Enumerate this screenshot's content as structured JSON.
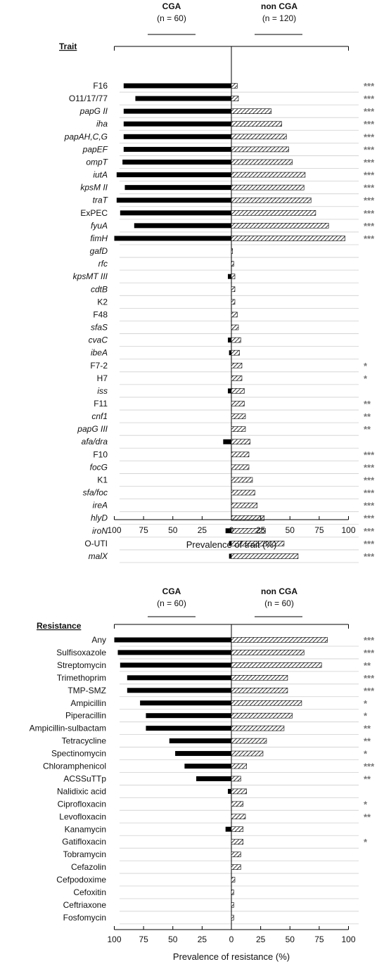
{
  "chart_data": [
    {
      "type": "bar",
      "orientation": "horizontal-diverging",
      "left_group": {
        "label": "CGA",
        "n_label": "(n = 60)"
      },
      "right_group": {
        "label": "non CGA",
        "n_label": "(n = 120)"
      },
      "category_header": "Trait",
      "xlabel": "Prevalence of trait  (%)",
      "xlim": [
        -100,
        100
      ],
      "ticks": [
        100,
        75,
        50,
        25,
        0,
        25,
        50,
        75,
        100
      ],
      "grid": true,
      "categories": [
        {
          "label": "F16",
          "italic": false
        },
        {
          "label": "O11/17/77",
          "italic": false
        },
        {
          "label": "papG II",
          "italic": true
        },
        {
          "label": "iha",
          "italic": true
        },
        {
          "label": "papAH,C,G",
          "italic": true
        },
        {
          "label": "papEF",
          "italic": true
        },
        {
          "label": "ompT",
          "italic": true
        },
        {
          "label": "iutA",
          "italic": true
        },
        {
          "label": "kpsM II",
          "italic": true
        },
        {
          "label": "traT",
          "italic": true
        },
        {
          "label": "ExPEC",
          "italic": false
        },
        {
          "label": "fyuA",
          "italic": true
        },
        {
          "label": "fimH",
          "italic": true
        },
        {
          "label": "gafD",
          "italic": true
        },
        {
          "label": "rfc",
          "italic": true
        },
        {
          "label": "kpsMT III",
          "italic": true
        },
        {
          "label": "cdtB",
          "italic": true
        },
        {
          "label": "K2",
          "italic": false
        },
        {
          "label": "F48",
          "italic": false
        },
        {
          "label": "sfaS",
          "italic": true
        },
        {
          "label": "cvaC",
          "italic": true
        },
        {
          "label": "ibeA",
          "italic": true
        },
        {
          "label": "F7-2",
          "italic": false
        },
        {
          "label": "H7",
          "italic": false
        },
        {
          "label": "iss",
          "italic": true
        },
        {
          "label": "F11",
          "italic": false
        },
        {
          "label": "cnf1",
          "italic": true
        },
        {
          "label": "papG III",
          "italic": true
        },
        {
          "label": "afa/dra",
          "italic": true
        },
        {
          "label": "F10",
          "italic": false
        },
        {
          "label": "focG",
          "italic": true
        },
        {
          "label": "K1",
          "italic": false
        },
        {
          "label": "sfa/foc",
          "italic": true
        },
        {
          "label": "ireA",
          "italic": true
        },
        {
          "label": "hlyD",
          "italic": true
        },
        {
          "label": "iroN",
          "italic": true
        },
        {
          "label": "O-UTI",
          "italic": false
        },
        {
          "label": "malX",
          "italic": true
        }
      ],
      "series": [
        {
          "name": "CGA",
          "fill": "solid",
          "values": [
            92,
            82,
            92,
            92,
            92,
            92,
            93,
            98,
            91,
            98,
            95,
            83,
            100,
            0,
            0,
            3,
            0,
            0,
            0,
            0,
            3,
            2,
            0,
            0,
            3,
            0,
            0,
            0,
            7,
            0,
            0,
            0,
            0,
            0,
            0,
            5,
            2,
            2
          ]
        },
        {
          "name": "non CGA",
          "fill": "hatched",
          "values": [
            5,
            6,
            34,
            43,
            47,
            49,
            52,
            63,
            62,
            68,
            72,
            83,
            97,
            1,
            2,
            3,
            3,
            3,
            5,
            6,
            8,
            7,
            9,
            9,
            11,
            11,
            12,
            12,
            16,
            15,
            15,
            18,
            20,
            22,
            28,
            29,
            45,
            57
          ]
        }
      ],
      "significance": [
        "***",
        "***",
        "***",
        "***",
        "***",
        "***",
        "***",
        "***",
        "***",
        "***",
        "***",
        "***",
        "***",
        "",
        "",
        "",
        "",
        "",
        "",
        "",
        "",
        "",
        "*",
        "*",
        "",
        "**",
        "**",
        "**",
        "",
        "***",
        "***",
        "***",
        "***",
        "***",
        "***",
        "***",
        "***",
        "***"
      ],
      "colors": {
        "bar": "#000000",
        "grid": "#cfcfcf",
        "axis": "#000000",
        "stars": "#777777"
      }
    },
    {
      "type": "bar",
      "orientation": "horizontal-diverging",
      "left_group": {
        "label": "CGA",
        "n_label": "(n = 60)"
      },
      "right_group": {
        "label": "non CGA",
        "n_label": "(n = 60)"
      },
      "category_header": "Resistance",
      "xlabel": "Prevalence of resistance  (%)",
      "xlim": [
        -100,
        100
      ],
      "ticks": [
        100,
        75,
        50,
        25,
        0,
        25,
        50,
        75,
        100
      ],
      "grid": true,
      "categories": [
        {
          "label": "Any",
          "italic": false
        },
        {
          "label": "Sulfisoxazole",
          "italic": false
        },
        {
          "label": "Streptomycin",
          "italic": false
        },
        {
          "label": "Trimethoprim",
          "italic": false
        },
        {
          "label": "TMP-SMZ",
          "italic": false
        },
        {
          "label": "Ampicillin",
          "italic": false
        },
        {
          "label": "Piperacillin",
          "italic": false
        },
        {
          "label": "Ampicillin-sulbactam",
          "italic": false
        },
        {
          "label": "Tetracycline",
          "italic": false
        },
        {
          "label": "Spectinomycin",
          "italic": false
        },
        {
          "label": "Chloramphenicol",
          "italic": false
        },
        {
          "label": "ACSSuTTp",
          "italic": false
        },
        {
          "label": "Nalidixic acid",
          "italic": false
        },
        {
          "label": "Ciprofloxacin",
          "italic": false
        },
        {
          "label": "Levofloxacin",
          "italic": false
        },
        {
          "label": "Kanamycin",
          "italic": false
        },
        {
          "label": "Gatifloxacin",
          "italic": false
        },
        {
          "label": "Tobramycin",
          "italic": false
        },
        {
          "label": "Cefazolin",
          "italic": false
        },
        {
          "label": "Cefpodoxime",
          "italic": false
        },
        {
          "label": "Cefoxitin",
          "italic": false
        },
        {
          "label": "Ceftriaxone",
          "italic": false
        },
        {
          "label": "Fosfomycin",
          "italic": false
        }
      ],
      "series": [
        {
          "name": "CGA",
          "fill": "solid",
          "values": [
            100,
            97,
            95,
            89,
            89,
            78,
            73,
            73,
            53,
            48,
            40,
            30,
            3,
            0,
            0,
            5,
            0,
            0,
            0,
            0,
            0,
            0,
            0
          ]
        },
        {
          "name": "non CGA",
          "fill": "hatched",
          "values": [
            82,
            62,
            77,
            48,
            48,
            60,
            52,
            45,
            30,
            27,
            13,
            8,
            13,
            10,
            12,
            10,
            10,
            8,
            8,
            3,
            2,
            2,
            2
          ]
        }
      ],
      "significance": [
        "***",
        "***",
        "**",
        "***",
        "***",
        "*",
        "*",
        "**",
        "**",
        "*",
        "***",
        "**",
        "",
        "*",
        "**",
        "",
        "*",
        "",
        "",
        "",
        "",
        "",
        ""
      ],
      "colors": {
        "bar": "#000000",
        "grid": "#cfcfcf",
        "axis": "#000000",
        "stars": "#777777"
      }
    }
  ]
}
